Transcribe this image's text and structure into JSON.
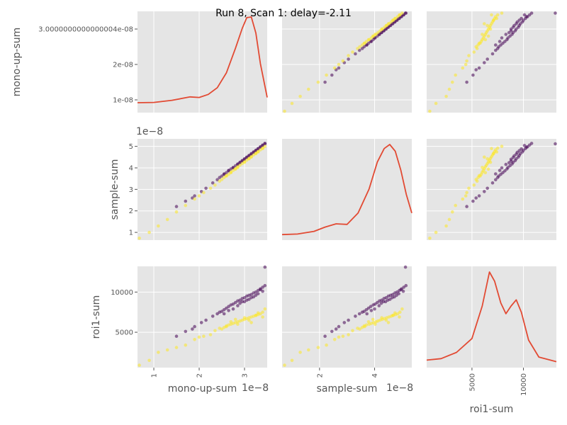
{
  "chart_data": {
    "type": "scatter",
    "title": "Run 8, Scan 1: delay=-2.11",
    "variables": [
      "mono-up-sum",
      "sample-sum",
      "roi1-sum"
    ],
    "ranges": {
      "mono-up-sum": [
        6.4e-09,
        3.5e-08
      ],
      "sample-sum": [
        6.4e-09,
        5.35e-08
      ],
      "roi1-sum": [
        600,
        13200
      ]
    },
    "ticks": {
      "mono-up-sum": {
        "row_values": [
          1e-08,
          2e-08,
          3.0000000000000004e-08
        ],
        "row_labels": [
          "1e-08",
          "2e-08",
          "3.0000000000000004e-08"
        ],
        "col_values": [
          1e-08,
          2e-08,
          3e-08
        ],
        "col_labels": [
          "1",
          "2",
          "3"
        ],
        "offset": "1e−8"
      },
      "sample-sum": {
        "row_values": [
          1e-08,
          2e-08,
          3e-08,
          4e-08,
          5e-08
        ],
        "row_labels": [
          "1",
          "2",
          "3",
          "4",
          "5"
        ],
        "row_offset": "1e−8",
        "col_values": [
          2e-08,
          4e-08
        ],
        "col_labels": [
          "2",
          "4"
        ],
        "offset": "1e−8"
      },
      "roi1-sum": {
        "row_values": [
          5000,
          10000
        ],
        "row_labels": [
          "5000",
          "10000"
        ],
        "col_values": [
          5000,
          10000
        ],
        "col_labels": [
          "5000",
          "10000"
        ]
      }
    },
    "kde": {
      "mono-up-sum": {
        "x": [
          6.4e-09,
          1e-08,
          1.4e-08,
          1.8e-08,
          2e-08,
          2.2e-08,
          2.4e-08,
          2.6e-08,
          2.8e-08,
          2.95e-08,
          3.05e-08,
          3.15e-08,
          3.25e-08,
          3.35e-08,
          3.5e-08
        ],
        "y": [
          0.23,
          0.24,
          0.31,
          0.42,
          0.4,
          0.5,
          0.72,
          1.2,
          2.0,
          2.65,
          3.0,
          3.02,
          2.5,
          1.5,
          0.4
        ]
      },
      "sample-sum": {
        "x": [
          6.4e-09,
          1.2e-08,
          1.8e-08,
          2.2e-08,
          2.6e-08,
          3e-08,
          3.4e-08,
          3.8e-08,
          4.1e-08,
          4.35e-08,
          4.55e-08,
          4.75e-08,
          4.95e-08,
          5.15e-08,
          5.35e-08
        ],
        "y": [
          0.1,
          0.12,
          0.22,
          0.38,
          0.5,
          0.48,
          0.9,
          1.8,
          2.8,
          3.3,
          3.45,
          3.2,
          2.5,
          1.6,
          0.9
        ]
      },
      "roi1-sum": {
        "x": [
          600,
          2000,
          3500,
          5000,
          6000,
          6700,
          7200,
          7800,
          8300,
          8800,
          9300,
          9800,
          10500,
          11500,
          13200
        ],
        "y": [
          0.3,
          0.4,
          0.8,
          1.7,
          3.8,
          6.0,
          5.4,
          4.0,
          3.3,
          3.8,
          4.2,
          3.4,
          1.6,
          0.5,
          0.2
        ]
      }
    },
    "series": [
      {
        "color": "#440154",
        "mono": [
          1.5e-08,
          1.7e-08,
          1.85e-08,
          1.9e-08,
          2.05e-08,
          2.15e-08,
          2.3e-08,
          2.4e-08,
          2.45e-08,
          2.5e-08,
          2.55e-08,
          2.6e-08,
          2.65e-08,
          2.7e-08,
          2.75e-08,
          2.8e-08,
          2.85e-08,
          2.9e-08,
          2.95e-08,
          3e-08,
          3.05e-08,
          3.1e-08,
          3.15e-08,
          3.2e-08,
          3.25e-08,
          3.3e-08,
          3.35e-08,
          3.4e-08,
          3.45e-08,
          2.55e-08,
          2.75e-08,
          2.9e-08,
          3e-08,
          3.1e-08,
          3.2e-08,
          3.3e-08,
          3.4e-08,
          2.85e-08,
          3.05e-08,
          3.25e-08,
          2.65e-08,
          2.95e-08,
          3.15e-08,
          3.35e-08,
          3.45e-08
        ],
        "sample": [
          2.2e-08,
          2.45e-08,
          2.6e-08,
          2.7e-08,
          2.9e-08,
          3.05e-08,
          3.3e-08,
          3.45e-08,
          3.55e-08,
          3.62e-08,
          3.7e-08,
          3.78e-08,
          3.86e-08,
          3.95e-08,
          4.02e-08,
          4.1e-08,
          4.18e-08,
          4.26e-08,
          4.34e-08,
          4.42e-08,
          4.5e-08,
          4.58e-08,
          4.66e-08,
          4.74e-08,
          4.82e-08,
          4.9e-08,
          4.98e-08,
          5.06e-08,
          5.14e-08,
          3.72e-08,
          4e-08,
          4.24e-08,
          4.4e-08,
          4.56e-08,
          4.72e-08,
          4.88e-08,
          5.04e-08,
          4.16e-08,
          4.48e-08,
          4.8e-08,
          3.88e-08,
          4.32e-08,
          4.64e-08,
          4.96e-08,
          5.12e-08
        ],
        "roi": [
          4500,
          5100,
          5400,
          5700,
          6200,
          6500,
          7000,
          7300,
          7500,
          7600,
          7800,
          8000,
          8200,
          8400,
          8500,
          8700,
          8900,
          9000,
          9200,
          9300,
          9500,
          9600,
          9700,
          9900,
          10000,
          10200,
          10400,
          10600,
          10800,
          7300,
          7900,
          8600,
          8800,
          9100,
          9400,
          9800,
          10100,
          8300,
          9000,
          9600,
          7700,
          8800,
          9300,
          10300,
          13100
        ]
      },
      {
        "color": "#fde725",
        "mono": [
          6.8e-09,
          9e-09,
          1.1e-08,
          1.3e-08,
          1.5e-08,
          1.7e-08,
          1.9e-08,
          2e-08,
          2.1e-08,
          2.25e-08,
          2.35e-08,
          2.45e-08,
          2.55e-08,
          2.6e-08,
          2.65e-08,
          2.7e-08,
          2.75e-08,
          2.8e-08,
          2.85e-08,
          2.9e-08,
          2.95e-08,
          3e-08,
          3.05e-08,
          3.1e-08,
          3.15e-08,
          3.2e-08,
          3.25e-08,
          3.3e-08,
          3.35e-08,
          3.4e-08,
          3.45e-08,
          2.5e-08,
          2.7e-08,
          2.85e-08,
          3e-08,
          3.15e-08,
          3.3e-08,
          2.6e-08,
          2.8e-08,
          3.1e-08,
          3.25e-08,
          3.4e-08
        ],
        "sample": [
          7.3e-09,
          1e-08,
          1.3e-08,
          1.6e-08,
          1.95e-08,
          2.25e-08,
          2.55e-08,
          2.7e-08,
          2.85e-08,
          3.05e-08,
          3.2e-08,
          3.38e-08,
          3.55e-08,
          3.62e-08,
          3.7e-08,
          3.8e-08,
          3.88e-08,
          3.96e-08,
          4.05e-08,
          4.12e-08,
          4.2e-08,
          4.28e-08,
          4.36e-08,
          4.44e-08,
          4.52e-08,
          4.6e-08,
          4.68e-08,
          4.76e-08,
          4.84e-08,
          4.92e-08,
          5e-08,
          3.46e-08,
          3.78e-08,
          4.02e-08,
          4.26e-08,
          4.5e-08,
          4.74e-08,
          3.64e-08,
          3.94e-08,
          4.42e-08,
          4.66e-08,
          4.9e-08
        ],
        "roi": [
          900,
          1500,
          2500,
          2800,
          3100,
          3400,
          4100,
          4400,
          4500,
          4700,
          5200,
          5500,
          5600,
          5800,
          5900,
          6000,
          6100,
          6200,
          6300,
          6400,
          6500,
          6600,
          6700,
          6800,
          6900,
          7000,
          7100,
          7200,
          7300,
          7500,
          7900,
          5400,
          6300,
          6000,
          6800,
          6200,
          7400,
          5700,
          6600,
          6500,
          7100,
          6900
        ]
      }
    ]
  }
}
